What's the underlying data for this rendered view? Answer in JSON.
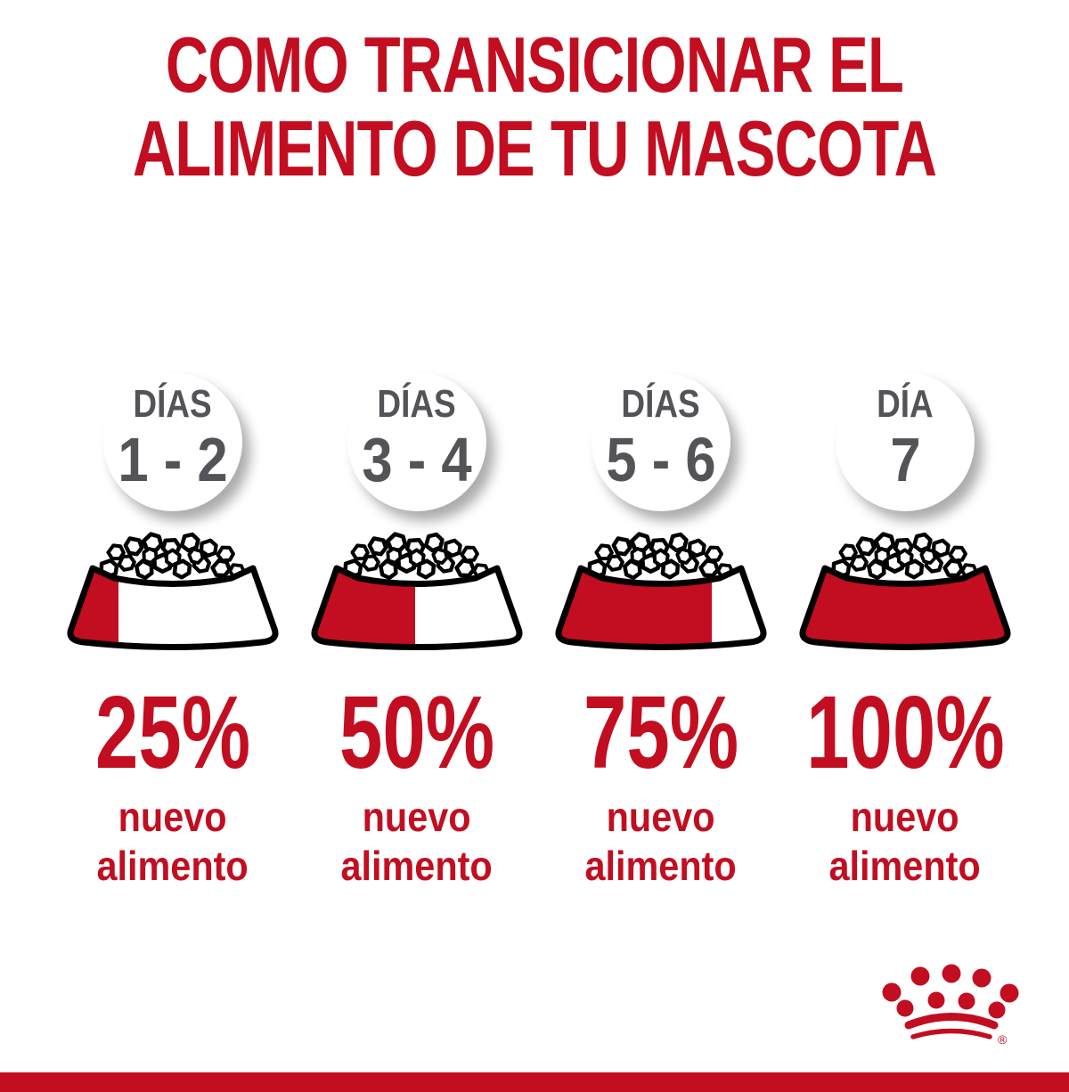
{
  "title": {
    "line1": "COMO TRANSICIONAR EL",
    "line2": "ALIMENTO DE TU MASCOTA"
  },
  "columns": [
    {
      "day_label": "DÍAS",
      "day_value": "1 - 2",
      "percent": "25%",
      "fill_percent": 25,
      "desc_line1": "nuevo",
      "desc_line2": "alimento"
    },
    {
      "day_label": "DÍAS",
      "day_value": "3 - 4",
      "percent": "50%",
      "fill_percent": 50,
      "desc_line1": "nuevo",
      "desc_line2": "alimento"
    },
    {
      "day_label": "DÍAS",
      "day_value": "5 - 6",
      "percent": "75%",
      "fill_percent": 75,
      "desc_line1": "nuevo",
      "desc_line2": "alimento"
    },
    {
      "day_label": "DÍA",
      "day_value": "7",
      "percent": "100%",
      "fill_percent": 100,
      "desc_line1": "nuevo",
      "desc_line2": "alimento"
    }
  ],
  "footer": {
    "logo_icon": "royal-canin-crown-icon",
    "registered_mark": "®"
  },
  "colors": {
    "red": "#C20E20",
    "gray": "#545458",
    "black": "#000000",
    "white": "#FFFFFF"
  },
  "chart_data": {
    "type": "table",
    "title": "COMO TRANSICIONAR EL ALIMENTO DE TU MASCOTA",
    "categories": [
      "DÍAS 1 - 2",
      "DÍAS 3 - 4",
      "DÍAS 5 - 6",
      "DÍA 7"
    ],
    "values": [
      25,
      50,
      75,
      100
    ],
    "value_unit": "% nuevo alimento"
  }
}
